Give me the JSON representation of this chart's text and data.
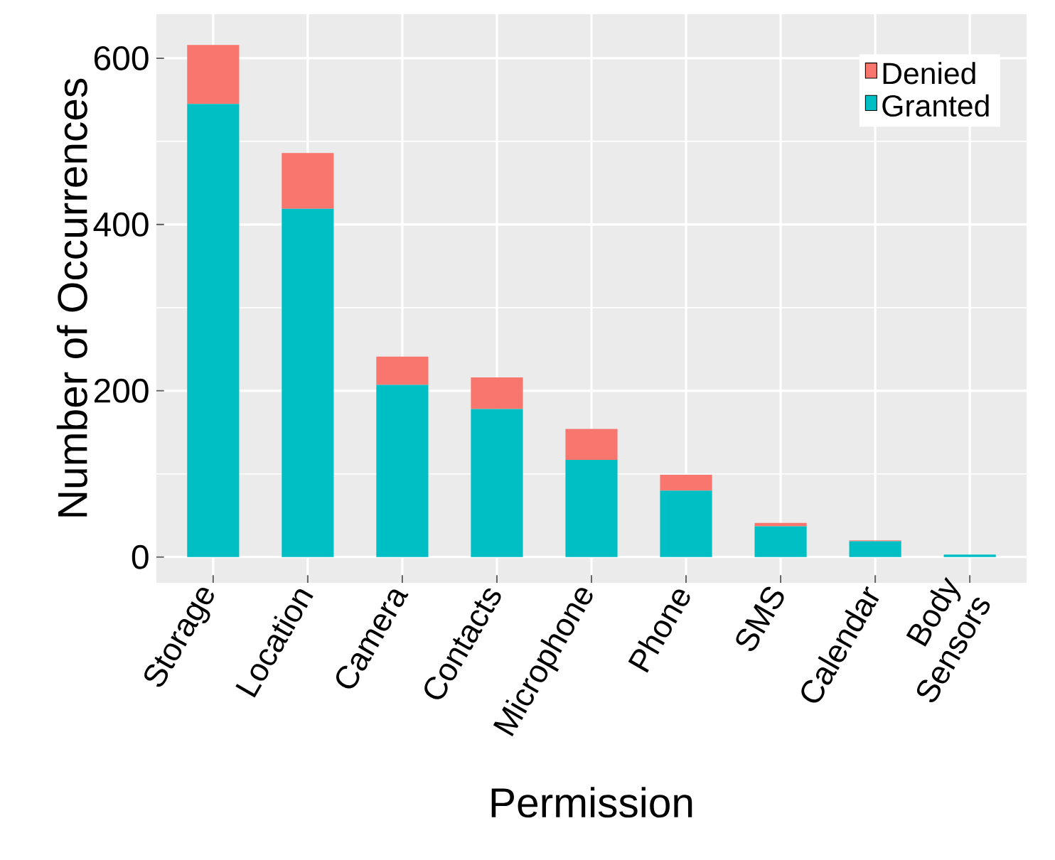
{
  "chart_data": {
    "type": "bar",
    "stacked": true,
    "xlabel": "Permission",
    "ylabel": "Number of Occurrences",
    "categories": [
      "Storage",
      "Location",
      "Camera",
      "Contacts",
      "Microphone",
      "Phone",
      "SMS",
      "Calendar",
      "Body Sensors"
    ],
    "series": [
      {
        "name": "Granted",
        "color": "#00bfc4",
        "values": [
          545,
          419,
          207,
          178,
          117,
          80,
          37,
          19,
          3
        ]
      },
      {
        "name": "Denied",
        "color": "#f8766d",
        "values": [
          71,
          67,
          34,
          38,
          37,
          19,
          4,
          1,
          0
        ]
      }
    ],
    "ylim": [
      -31,
      653
    ],
    "yticks": [
      0,
      200,
      400,
      600
    ],
    "grid": true,
    "legend": "top right"
  }
}
